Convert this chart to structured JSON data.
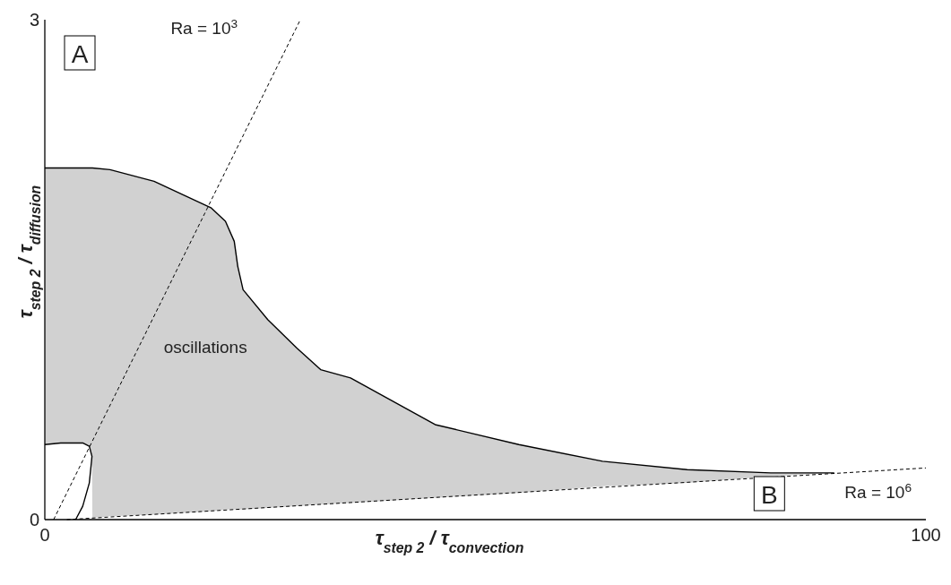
{
  "chart_data": {
    "type": "line",
    "xlabel": "τ$_{step 2}$ / τ$_{convection}$",
    "ylabel": "τ$_{step 2}$ / τ$_{diffusion}$",
    "xlim": [
      0,
      100
    ],
    "xticks": [
      0,
      100
    ],
    "ylim": [
      0,
      3
    ],
    "yticks": [
      0,
      3
    ],
    "grid": false,
    "annotations": [
      "A",
      "B",
      "oscillations"
    ],
    "series": [
      {
        "type": "line",
        "color": "#000000",
        "x": [
          0,
          1.8,
          3.5,
          4.3,
          5.05,
          5.35,
          5.4,
          7.4,
          12.4,
          18.9,
          20.5,
          21.5,
          21.9,
          22.5,
          25.3,
          28.6,
          31.3,
          34.7,
          44.3,
          53.8,
          63.3,
          72.9,
          82.4,
          89.6
        ],
        "values": [
          2.11,
          2.11,
          2.11,
          2.11,
          2.11,
          2.11,
          2.11,
          2.1,
          2.03,
          1.87,
          1.79,
          1.67,
          1.52,
          1.38,
          1.2,
          1.03,
          0.9,
          0.85,
          0.57,
          0.45,
          0.35,
          0.3,
          0.28,
          0.28
        ],
        "upper": [
          2.11,
          2.11,
          2.11,
          2.11,
          2.11,
          2.11,
          2.11,
          2.1,
          2.03,
          1.87,
          1.79,
          1.67,
          1.52,
          1.38,
          1.2,
          1.03,
          0.9,
          0.85,
          0.57,
          0.45,
          0.35,
          0.3,
          0.28,
          0.28
        ],
        "lower": [
          0.45,
          0.46,
          0.46,
          0.46,
          0.44,
          0.38,
          0.01,
          0.02,
          0.03,
          0.05,
          0.06,
          0.06,
          0.06,
          0.06,
          0.07,
          0.08,
          0.09,
          0.1,
          0.13,
          0.16,
          0.2,
          0.22,
          0.26,
          0.28
        ]
      },
      {
        "type": "line",
        "color": "#000000",
        "x": [
          0,
          1.8,
          3.5,
          4.3,
          5.05,
          5.35,
          5.3,
          5.05,
          4.3,
          3.5
        ],
        "values": [
          0.45,
          0.46,
          0.46,
          0.46,
          0.44,
          0.38,
          0.35,
          0.22,
          0.08,
          0
        ]
      },
      {
        "type": "line",
        "name": "Ra = 10$^{3}$",
        "color": "#000000",
        "line_style": "dashed",
        "x": [
          1,
          29
        ],
        "values": [
          0,
          3
        ]
      },
      {
        "type": "line",
        "name": "Ra = 10$^{6}$",
        "color": "#000000",
        "line_style": "dashed",
        "x": [
          2.5,
          100
        ],
        "values": [
          0,
          0.31
        ]
      }
    ]
  }
}
